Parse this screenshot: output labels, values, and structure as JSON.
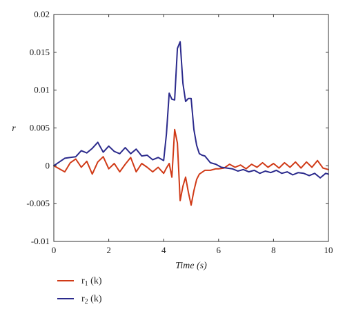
{
  "chart_data": {
    "type": "line",
    "xlabel": "Time (s)",
    "ylabel": "r",
    "xlim": [
      0,
      10
    ],
    "ylim": [
      -0.01,
      0.02
    ],
    "x_ticks": [
      0,
      2,
      4,
      6,
      8,
      10
    ],
    "y_ticks": [
      -0.01,
      -0.005,
      0,
      0.005,
      0.01,
      0.015,
      0.02
    ],
    "y_tick_labels": [
      "-0.01",
      "-0.005",
      "0",
      "0.005",
      "0.01",
      "0.015",
      "0.02"
    ],
    "grid": false,
    "legend_placement": "bottom-left",
    "series": [
      {
        "name": "r1 (k)",
        "legend_main": "r",
        "legend_sub": "1",
        "legend_suffix": " (k)",
        "color": "#d03a17",
        "x": [
          0,
          0.2,
          0.4,
          0.6,
          0.8,
          1.0,
          1.2,
          1.4,
          1.6,
          1.8,
          2.0,
          2.2,
          2.4,
          2.6,
          2.8,
          3.0,
          3.2,
          3.4,
          3.6,
          3.8,
          4.0,
          4.1,
          4.2,
          4.3,
          4.4,
          4.5,
          4.6,
          4.7,
          4.8,
          4.9,
          5.0,
          5.1,
          5.2,
          5.3,
          5.5,
          5.7,
          5.9,
          6.0,
          6.2,
          6.4,
          6.6,
          6.8,
          7.0,
          7.2,
          7.4,
          7.6,
          7.8,
          8.0,
          8.2,
          8.4,
          8.6,
          8.8,
          9.0,
          9.2,
          9.4,
          9.6,
          9.8,
          10.0
        ],
        "y": [
          0,
          -0.0004,
          -0.0008,
          0.0004,
          0.0009,
          -0.0002,
          0.0006,
          -0.0011,
          0.0005,
          0.0012,
          -0.0004,
          0.0003,
          -0.0008,
          0.0002,
          0.0011,
          -0.0008,
          0.0003,
          -0.0002,
          -0.0008,
          -0.0002,
          -0.001,
          -0.0003,
          0.0003,
          -0.0015,
          0.0048,
          0.003,
          -0.0046,
          -0.0027,
          -0.0015,
          -0.0035,
          -0.0052,
          -0.0033,
          -0.0018,
          -0.0011,
          -0.0006,
          -0.0006,
          -0.0004,
          -0.0004,
          -0.0003,
          0.0002,
          -0.0002,
          0.0001,
          -0.0004,
          0.0002,
          -0.0002,
          0.0004,
          -0.0002,
          0.0003,
          -0.0003,
          0.0004,
          -0.0002,
          0.0005,
          -0.0003,
          0.0005,
          -0.0002,
          0.0007,
          -0.0003,
          -0.0005
        ]
      },
      {
        "name": "r2 (k)",
        "legend_main": "r",
        "legend_sub": "2",
        "legend_suffix": " (k)",
        "color": "#2b2a8c",
        "x": [
          0,
          0.2,
          0.4,
          0.6,
          0.8,
          1.0,
          1.2,
          1.4,
          1.6,
          1.8,
          2.0,
          2.2,
          2.4,
          2.6,
          2.8,
          3.0,
          3.2,
          3.4,
          3.6,
          3.8,
          4.0,
          4.1,
          4.2,
          4.3,
          4.4,
          4.5,
          4.6,
          4.7,
          4.8,
          4.9,
          5.0,
          5.1,
          5.2,
          5.3,
          5.4,
          5.5,
          5.7,
          5.9,
          6.1,
          6.3,
          6.5,
          6.7,
          6.9,
          7.1,
          7.3,
          7.5,
          7.7,
          7.9,
          8.1,
          8.3,
          8.5,
          8.7,
          8.9,
          9.1,
          9.3,
          9.5,
          9.7,
          9.9,
          10.0
        ],
        "y": [
          0,
          0.0005,
          0.001,
          0.0011,
          0.0012,
          0.002,
          0.0017,
          0.0023,
          0.0031,
          0.0018,
          0.0026,
          0.0019,
          0.0016,
          0.0024,
          0.0016,
          0.0022,
          0.0013,
          0.0014,
          0.0008,
          0.0011,
          0.0007,
          0.0042,
          0.0096,
          0.0088,
          0.0087,
          0.0155,
          0.0164,
          0.0109,
          0.0085,
          0.0089,
          0.0089,
          0.0048,
          0.0027,
          0.0016,
          0.0014,
          0.0013,
          0.0004,
          0.0002,
          -0.0002,
          -0.0003,
          -0.0004,
          -0.0007,
          -0.0005,
          -0.0008,
          -0.0006,
          -0.001,
          -0.0007,
          -0.0009,
          -0.0006,
          -0.001,
          -0.0008,
          -0.0012,
          -0.0009,
          -0.001,
          -0.0013,
          -0.001,
          -0.0016,
          -0.001,
          -0.0011
        ]
      }
    ]
  }
}
